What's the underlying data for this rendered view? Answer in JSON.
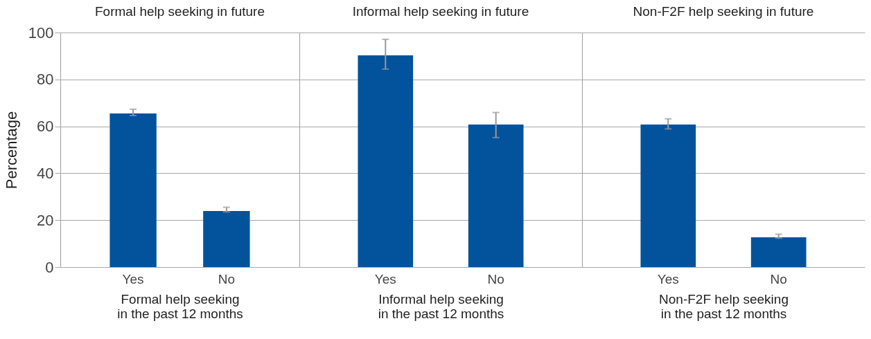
{
  "chart_data": [
    {
      "type": "bar",
      "title": "Formal help seeking in future",
      "xlabel": "Formal help seeking\nin the past 12 months",
      "ylabel": "Percentage",
      "categories": [
        "Yes",
        "No"
      ],
      "values": [
        65.5,
        23.9
      ],
      "errors": [
        [
          64.6,
          67.3
        ],
        [
          23.5,
          25.5
        ]
      ],
      "color": "#03539c",
      "ylim": [
        0,
        100
      ],
      "yticks": [
        0,
        20,
        40,
        60,
        80,
        100
      ],
      "grid": "y"
    },
    {
      "type": "bar",
      "title": "Informal help seeking in future",
      "xlabel": "Informal help seeking\nin the past 12 months",
      "categories": [
        "Yes",
        "No"
      ],
      "values": [
        90.3,
        60.8
      ],
      "errors": [
        [
          84.4,
          97.1
        ],
        [
          55.2,
          65.9
        ]
      ],
      "color": "#03539c",
      "ylim": [
        0,
        100
      ],
      "yticks": [
        0,
        20,
        40,
        60,
        80,
        100
      ],
      "grid": "y",
      "tick_labels": "x"
    },
    {
      "type": "bar",
      "title": "Non-F2F help seeking in future",
      "xlabel": "Non-F2F help seeking\nin the past 12 months",
      "categories": [
        "Yes",
        "No"
      ],
      "values": [
        60.8,
        12.7
      ],
      "errors": [
        [
          58.9,
          63.2
        ],
        [
          12.3,
          14.0
        ]
      ],
      "color": "#03539c",
      "ylim": [
        0,
        100
      ],
      "yticks": [
        0,
        20,
        40,
        60,
        80,
        100
      ],
      "grid": "y",
      "tick_labels": "x"
    }
  ]
}
